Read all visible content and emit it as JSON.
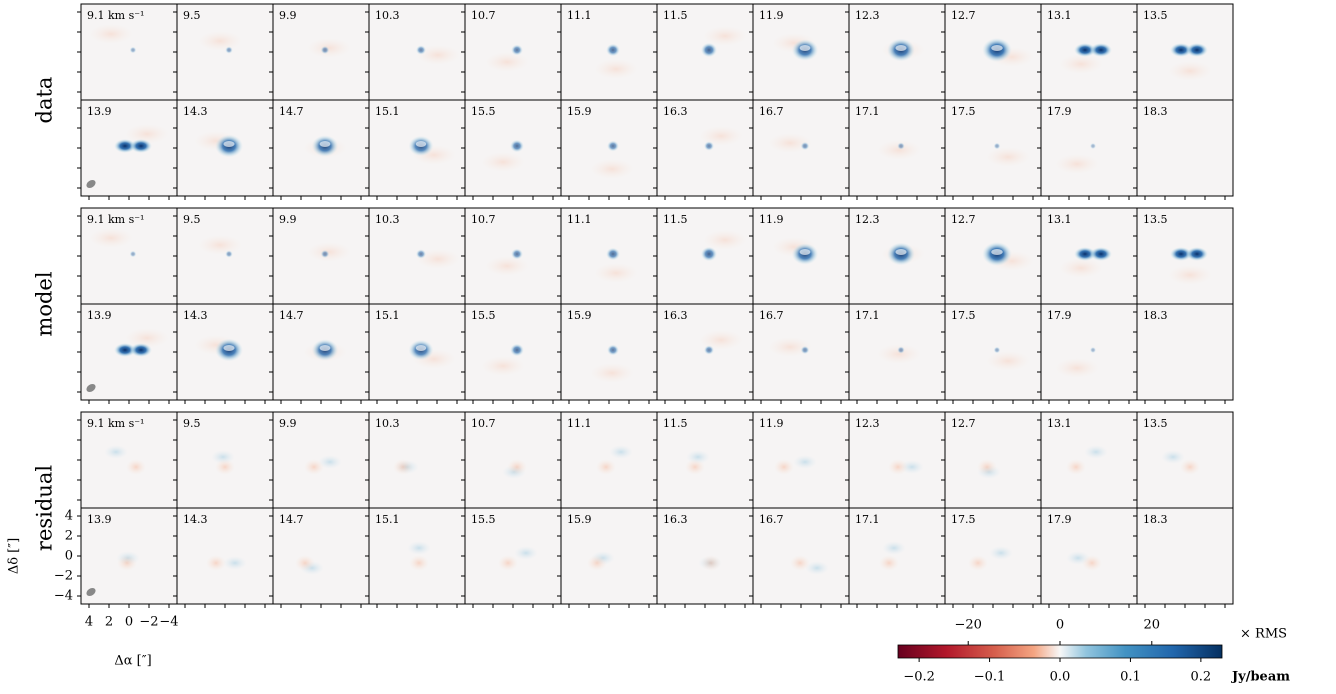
{
  "chart_data": {
    "type": "channel-maps",
    "groups": [
      {
        "name": "data"
      },
      {
        "name": "model"
      },
      {
        "name": "residual"
      }
    ],
    "channels": [
      "9.1 km s⁻¹",
      "9.5",
      "9.9",
      "10.3",
      "10.7",
      "11.1",
      "11.5",
      "11.9",
      "12.3",
      "12.7",
      "13.1",
      "13.5",
      "13.9",
      "14.3",
      "14.7",
      "15.1",
      "15.5",
      "15.9",
      "16.3",
      "16.7",
      "17.1",
      "17.5",
      "17.9",
      "18.3"
    ],
    "xlim": [
      4.8,
      -4.8
    ],
    "ylim": [
      -4.8,
      4.8
    ],
    "xticks": [
      4,
      2,
      0,
      {
        "value": -2,
        "label": "−2"
      },
      {
        "value": -4,
        "label": "−4"
      }
    ],
    "yticks": [
      4,
      2,
      0,
      {
        "value": -2,
        "label": "−2"
      },
      {
        "value": -4,
        "label": "−4"
      }
    ],
    "xlabel": "Δα [″]",
    "ylabel": "Δδ [″]",
    "colorbar": {
      "label": "Jy/beam",
      "lim": [
        -0.23,
        0.23
      ],
      "ticks": [
        {
          "value": -0.2,
          "label": "−0.2"
        },
        {
          "value": -0.1,
          "label": "−0.1"
        },
        {
          "value": 0,
          "label": "0.0"
        },
        0.1,
        0.2
      ],
      "secondary_label": "× RMS",
      "secondary_lim": [
        -35.3,
        35.3
      ],
      "secondary_ticks": [
        {
          "value": -20,
          "label": "−20"
        },
        0,
        20
      ]
    }
  }
}
